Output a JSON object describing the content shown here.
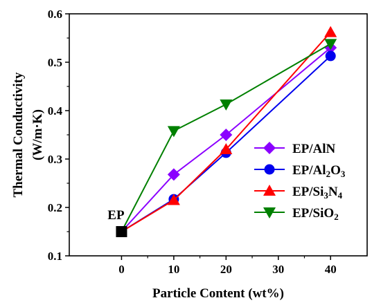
{
  "chart_data": {
    "type": "line",
    "xlabel": "Particle Content (wt%)",
    "ylabel_line1": "Thermal Conductivity",
    "ylabel_line2": "(W/m·K)",
    "xlim": [
      -10,
      47
    ],
    "ylim": [
      0.1,
      0.6
    ],
    "x_ticks": [
      0,
      10,
      20,
      30,
      40
    ],
    "y_ticks": [
      0.1,
      0.2,
      0.3,
      0.4,
      0.5,
      0.6
    ],
    "x_tick_labels": [
      "0",
      "10",
      "20",
      "30",
      "40"
    ],
    "y_tick_labels": [
      "0.1",
      "0.2",
      "0.3",
      "0.4",
      "0.5",
      "0.6"
    ],
    "grid": false,
    "legend_position": "center-right",
    "base_point": {
      "label": "EP",
      "x": 0,
      "y": 0.15,
      "color": "#000000",
      "marker": "square"
    },
    "series": [
      {
        "name": "EP/AlN",
        "name_parts": [
          {
            "t": "EP/AlN"
          }
        ],
        "color": "#8B00FF",
        "marker": "diamond",
        "x": [
          0,
          10,
          20,
          40
        ],
        "y": [
          0.15,
          0.268,
          0.35,
          0.53
        ]
      },
      {
        "name": "EP/Al2O3",
        "name_parts": [
          {
            "t": "EP/Al"
          },
          {
            "t": "2",
            "sub": true
          },
          {
            "t": "O"
          },
          {
            "t": "3",
            "sub": true
          }
        ],
        "color": "#0000EE",
        "marker": "circle",
        "x": [
          0,
          10,
          20,
          40
        ],
        "y": [
          0.15,
          0.217,
          0.313,
          0.513
        ]
      },
      {
        "name": "EP/Si3N4",
        "name_parts": [
          {
            "t": "EP/Si"
          },
          {
            "t": "3",
            "sub": true
          },
          {
            "t": "N"
          },
          {
            "t": "4",
            "sub": true
          }
        ],
        "color": "#FF0000",
        "marker": "triangle-up",
        "x": [
          0,
          10,
          20,
          40
        ],
        "y": [
          0.15,
          0.215,
          0.32,
          0.562
        ]
      },
      {
        "name": "EP/SiO2",
        "name_parts": [
          {
            "t": "EP/SiO"
          },
          {
            "t": "2",
            "sub": true
          }
        ],
        "color": "#008000",
        "marker": "triangle-down",
        "x": [
          0,
          10,
          20,
          40
        ],
        "y": [
          0.15,
          0.358,
          0.413,
          0.538
        ]
      }
    ]
  }
}
